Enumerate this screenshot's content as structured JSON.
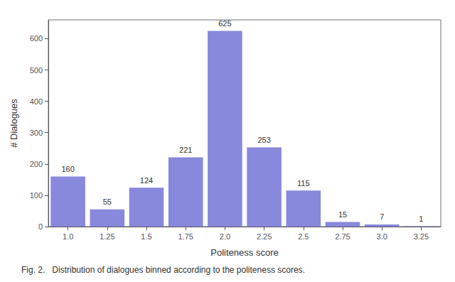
{
  "chart_data": {
    "type": "bar",
    "categories": [
      "1.0",
      "1.25",
      "1.5",
      "1.75",
      "2.0",
      "2.25",
      "2.5",
      "2.75",
      "3.0",
      "3.25"
    ],
    "values": [
      160,
      55,
      124,
      221,
      625,
      253,
      115,
      15,
      7,
      1
    ],
    "color": "#8888dd",
    "xlabel": "Politeness score",
    "ylabel": "# Dialogues",
    "ylim": [
      0,
      660
    ],
    "yticks": [
      0,
      100,
      200,
      300,
      400,
      500,
      600
    ],
    "grid": false,
    "data_labels": true,
    "caption": "Fig. 2.   Distribution of dialogues binned according to the politeness scores."
  }
}
